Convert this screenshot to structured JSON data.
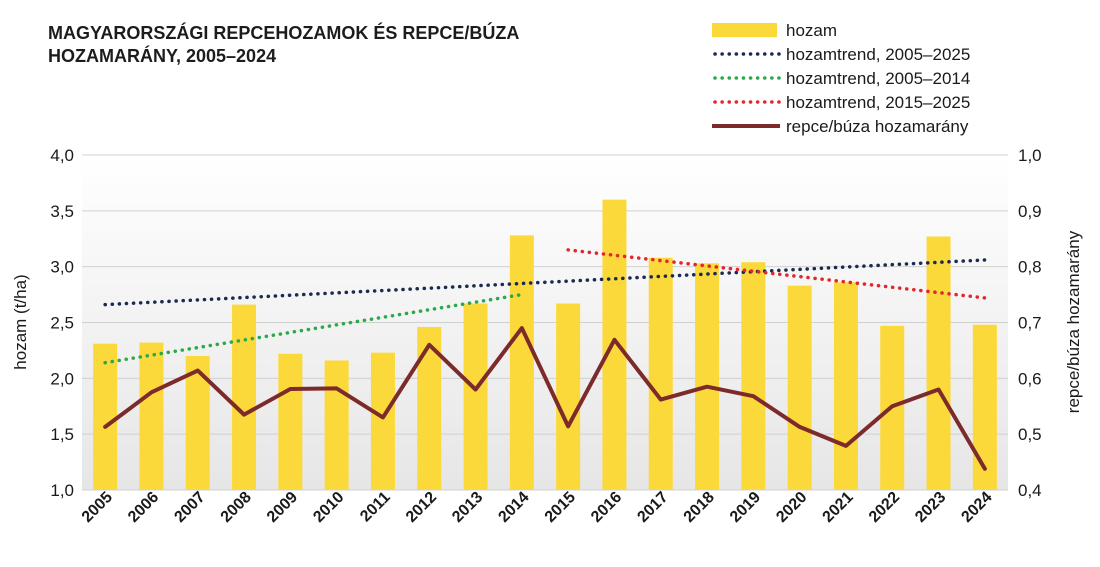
{
  "title": "MAGYARORSZÁGI REPCEHOZAMOK ÉS REPCE/BÚZA HOZAMARÁNY, 2005–2024",
  "chart_data": {
    "type": "bar",
    "title": "MAGYARORSZÁGI REPCEHOZAMOK ÉS REPCE/BÚZA HOZAMARÁNY, 2005–2024",
    "categories": [
      "2005",
      "2006",
      "2007",
      "2008",
      "2009",
      "2010",
      "2011",
      "2012",
      "2013",
      "2014",
      "2015",
      "2016",
      "2017",
      "2018",
      "2019",
      "2020",
      "2021",
      "2022",
      "2023",
      "2024"
    ],
    "ylabel": "hozam (t/ha)",
    "ylim": [
      1.0,
      4.0
    ],
    "yticks": [
      "1,0",
      "1,5",
      "2,0",
      "2,5",
      "3,0",
      "3,5",
      "4,0"
    ],
    "y2label": "repce/búza hozamarány",
    "y2lim": [
      0.4,
      1.0
    ],
    "y2ticks": [
      "0,4",
      "0,5",
      "0,6",
      "0,7",
      "0,8",
      "0,9",
      "1,0"
    ],
    "grid": true,
    "legend_position": "top-right",
    "series": [
      {
        "name": "hozam",
        "type": "bar",
        "axis": "left",
        "color": "#fcd93a",
        "values": [
          2.31,
          2.32,
          2.2,
          2.66,
          2.22,
          2.16,
          2.23,
          2.46,
          2.67,
          3.28,
          2.67,
          3.6,
          3.08,
          3.03,
          3.04,
          2.83,
          2.86,
          2.47,
          3.27,
          2.48
        ]
      },
      {
        "name": "hozamtrend, 2005–2025",
        "type": "trend",
        "axis": "left",
        "color": "#1b2a4e",
        "from": [
          "2005",
          2.66
        ],
        "to": [
          "2024",
          3.06
        ]
      },
      {
        "name": "hozamtrend, 2005–2014",
        "type": "trend",
        "axis": "left",
        "color": "#2aa84a",
        "from": [
          "2005",
          2.14
        ],
        "to": [
          "2014",
          2.75
        ]
      },
      {
        "name": "hozamtrend, 2015–2025",
        "type": "trend",
        "axis": "left",
        "color": "#e3262b",
        "from": [
          "2015",
          3.15
        ],
        "to": [
          "2024",
          2.72
        ]
      },
      {
        "name": "repce/búza hozamarány",
        "type": "line",
        "axis": "right",
        "color": "#7d2a2a",
        "values": [
          0.513,
          0.575,
          0.614,
          0.535,
          0.581,
          0.582,
          0.53,
          0.66,
          0.58,
          0.69,
          0.514,
          0.669,
          0.562,
          0.585,
          0.568,
          0.513,
          0.479,
          0.55,
          0.58,
          0.438
        ]
      }
    ]
  }
}
